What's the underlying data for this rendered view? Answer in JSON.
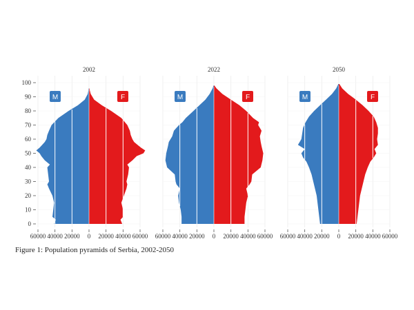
{
  "chart_data": {
    "type": "population-pyramid",
    "title": "",
    "xlabel": "",
    "ylabel": "",
    "x_ticks": [
      "60000",
      "40000",
      "20000",
      "0",
      "20000",
      "40000",
      "60000"
    ],
    "xlim": [
      -60000,
      60000
    ],
    "ylim": [
      0,
      100
    ],
    "y_ticks": [
      0,
      10,
      20,
      30,
      40,
      50,
      60,
      70,
      80,
      90,
      100
    ],
    "grid": true,
    "legend_labels": {
      "male": "M",
      "female": "F"
    },
    "colors": {
      "male": "#3a7bbf",
      "female": "#e31a1c",
      "grid": "#ececec"
    },
    "panels": [
      {
        "title": "2002",
        "age_points": [
          0,
          3,
          5,
          10,
          15,
          20,
          25,
          28,
          30,
          35,
          40,
          42,
          45,
          48,
          50,
          52,
          54,
          56,
          58,
          60,
          63,
          66,
          70,
          75,
          80,
          84,
          88,
          92,
          96
        ],
        "male": [
          41000,
          39000,
          43000,
          42000,
          41000,
          43000,
          47000,
          49000,
          47000,
          48000,
          49000,
          46000,
          52000,
          56000,
          58000,
          62000,
          58000,
          55000,
          52000,
          50000,
          49000,
          47000,
          44000,
          36000,
          24000,
          13000,
          5000,
          1500,
          200
        ],
        "female": [
          39000,
          37000,
          40000,
          40000,
          38000,
          41000,
          44000,
          45000,
          44000,
          46000,
          47000,
          45000,
          51000,
          56000,
          64000,
          66000,
          61000,
          57000,
          53000,
          51000,
          49000,
          48000,
          45000,
          38000,
          26000,
          15000,
          6000,
          2000,
          300
        ]
      },
      {
        "title": "2022",
        "age_points": [
          0,
          5,
          10,
          15,
          20,
          25,
          28,
          30,
          35,
          40,
          45,
          50,
          55,
          58,
          62,
          66,
          70,
          72,
          75,
          80,
          84,
          88,
          92,
          96,
          98
        ],
        "male": [
          38000,
          38000,
          39000,
          41000,
          42000,
          40000,
          44000,
          45000,
          46000,
          55000,
          57000,
          56000,
          54000,
          53000,
          49000,
          47000,
          41000,
          37000,
          33000,
          24000,
          17000,
          10000,
          5000,
          1500,
          300
        ],
        "female": [
          36000,
          36000,
          37000,
          38000,
          40000,
          38000,
          42000,
          44000,
          45000,
          55000,
          57000,
          58000,
          56000,
          55000,
          54000,
          56000,
          52000,
          53000,
          46000,
          38000,
          30000,
          20000,
          10000,
          3000,
          500
        ],
        "markers_male": [
          20000,
          40000
        ],
        "markers_female": [
          20000,
          40000
        ]
      },
      {
        "title": "2050",
        "age_points": [
          0,
          5,
          10,
          15,
          20,
          25,
          30,
          35,
          40,
          44,
          47,
          50,
          53,
          56,
          60,
          64,
          68,
          72,
          76,
          80,
          84,
          88,
          92,
          96,
          99
        ],
        "male": [
          22000,
          23000,
          24000,
          25000,
          26000,
          28000,
          30000,
          32000,
          35000,
          38000,
          42000,
          44000,
          40000,
          48000,
          44000,
          43000,
          42000,
          39000,
          35000,
          29000,
          22000,
          15000,
          8000,
          3000,
          500
        ],
        "female": [
          21000,
          22000,
          23000,
          24000,
          25000,
          27000,
          29000,
          31000,
          34000,
          37000,
          41000,
          44000,
          42000,
          46000,
          45000,
          46000,
          46000,
          44000,
          41000,
          35000,
          28000,
          20000,
          11000,
          4000,
          700
        ]
      }
    ]
  },
  "caption": "Figure 1: Population pyramids of Serbia, 2002-2050"
}
